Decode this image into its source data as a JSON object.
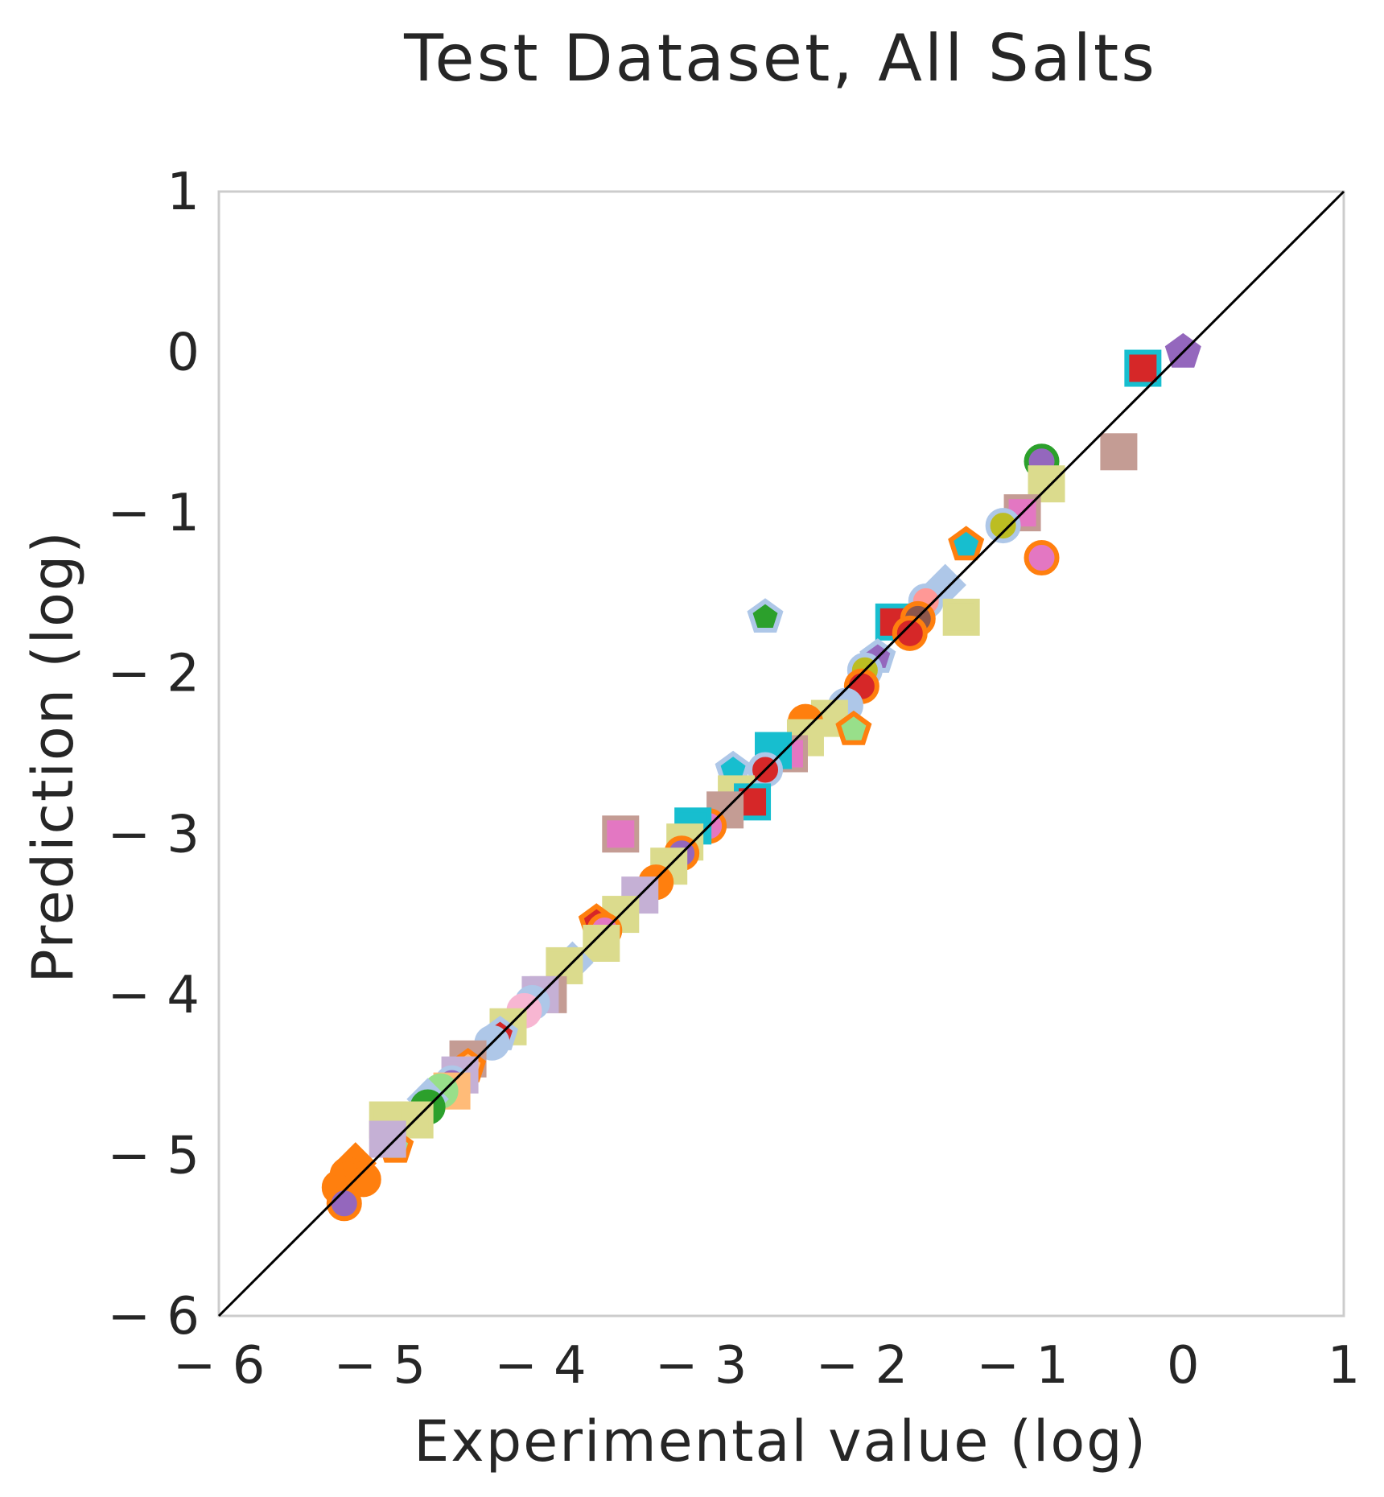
{
  "chart_data": {
    "type": "scatter",
    "title": "Test Dataset, All Salts",
    "xlabel": "Experimental value (log)",
    "ylabel": "Prediction (log)",
    "xlim": [
      -6,
      1
    ],
    "ylim": [
      -6,
      1
    ],
    "xticks": [
      "− 6",
      "− 5",
      "− 4",
      "− 3",
      "− 2",
      "− 1",
      "0",
      "1"
    ],
    "yticks": [
      "− 6",
      "− 5",
      "− 4",
      "− 3",
      "− 2",
      "− 1",
      "0",
      "1"
    ],
    "xtick_values": [
      -6,
      -5,
      -4,
      -3,
      -2,
      -1,
      0,
      1
    ],
    "ytick_values": [
      -6,
      -5,
      -4,
      -3,
      -2,
      -1,
      0,
      1
    ],
    "grid": false,
    "reference_line": {
      "from": [
        -6,
        -6
      ],
      "to": [
        1,
        1
      ],
      "color": "#000000"
    },
    "points": [
      {
        "x": 0.0,
        "y": 0.0,
        "marker": "pentagon",
        "fill": "#9467bd",
        "edge": "#9467bd"
      },
      {
        "x": -0.25,
        "y": -0.1,
        "marker": "square",
        "fill": "#d62728",
        "edge": "#17becf"
      },
      {
        "x": -0.4,
        "y": -0.62,
        "marker": "square",
        "fill": "#c49c94",
        "edge": "#c49c94"
      },
      {
        "x": -0.88,
        "y": -0.68,
        "marker": "circle",
        "fill": "#9467bd",
        "edge": "#2ca02c"
      },
      {
        "x": -0.85,
        "y": -0.82,
        "marker": "square",
        "fill": "#dbdb8d",
        "edge": "#dbdb8d"
      },
      {
        "x": -1.0,
        "y": -1.0,
        "marker": "square",
        "fill": "#e377c2",
        "edge": "#c49c94"
      },
      {
        "x": -1.12,
        "y": -1.08,
        "marker": "circle",
        "fill": "#bcbd22",
        "edge": "#aec7e8"
      },
      {
        "x": -1.35,
        "y": -1.2,
        "marker": "pentagon",
        "fill": "#17becf",
        "edge": "#ff7f0e"
      },
      {
        "x": -0.88,
        "y": -1.28,
        "marker": "circle",
        "fill": "#e377c2",
        "edge": "#ff7f0e"
      },
      {
        "x": -1.48,
        "y": -1.45,
        "marker": "diamond",
        "fill": "#aec7e8",
        "edge": "#aec7e8"
      },
      {
        "x": -1.6,
        "y": -1.55,
        "marker": "circle",
        "fill": "#ff9896",
        "edge": "#aec7e8"
      },
      {
        "x": -1.38,
        "y": -1.65,
        "marker": "square",
        "fill": "#dbdb8d",
        "edge": "#dbdb8d"
      },
      {
        "x": -1.8,
        "y": -1.68,
        "marker": "square",
        "fill": "#d62728",
        "edge": "#17becf"
      },
      {
        "x": -1.65,
        "y": -1.66,
        "marker": "circle",
        "fill": "#8c564b",
        "edge": "#ff7f0e"
      },
      {
        "x": -1.7,
        "y": -1.75,
        "marker": "circle",
        "fill": "#d62728",
        "edge": "#ff7f0e"
      },
      {
        "x": -2.6,
        "y": -1.65,
        "marker": "pentagon",
        "fill": "#2ca02c",
        "edge": "#aec7e8"
      },
      {
        "x": -1.9,
        "y": -1.9,
        "marker": "pentagon",
        "fill": "#9467bd",
        "edge": "#aec7e8"
      },
      {
        "x": -1.98,
        "y": -1.98,
        "marker": "circle",
        "fill": "#bcbd22",
        "edge": "#aec7e8"
      },
      {
        "x": -2.0,
        "y": -2.08,
        "marker": "circle",
        "fill": "#d62728",
        "edge": "#ff7f0e"
      },
      {
        "x": -2.1,
        "y": -2.2,
        "marker": "circle",
        "fill": "#aec7e8",
        "edge": "#aec7e8"
      },
      {
        "x": -2.2,
        "y": -2.28,
        "marker": "square",
        "fill": "#dbdb8d",
        "edge": "#dbdb8d"
      },
      {
        "x": -2.05,
        "y": -2.35,
        "marker": "pentagon",
        "fill": "#98df8a",
        "edge": "#ff7f0e"
      },
      {
        "x": -2.35,
        "y": -2.3,
        "marker": "circle",
        "fill": "#ff7f0e",
        "edge": "#ff7f0e"
      },
      {
        "x": -2.35,
        "y": -2.4,
        "marker": "square",
        "fill": "#dbdb8d",
        "edge": "#dbdb8d"
      },
      {
        "x": -2.45,
        "y": -2.5,
        "marker": "square",
        "fill": "#e377c2",
        "edge": "#c49c94"
      },
      {
        "x": -2.55,
        "y": -2.48,
        "marker": "square",
        "fill": "#17becf",
        "edge": "#17becf"
      },
      {
        "x": -2.6,
        "y": -2.6,
        "marker": "circle",
        "fill": "#d62728",
        "edge": "#aec7e8"
      },
      {
        "x": -2.8,
        "y": -2.6,
        "marker": "pentagon",
        "fill": "#17becf",
        "edge": "#aec7e8"
      },
      {
        "x": -2.78,
        "y": -2.75,
        "marker": "square",
        "fill": "#dbdb8d",
        "edge": "#dbdb8d"
      },
      {
        "x": -2.68,
        "y": -2.8,
        "marker": "square",
        "fill": "#d62728",
        "edge": "#17becf"
      },
      {
        "x": -2.85,
        "y": -2.85,
        "marker": "square",
        "fill": "#c49c94",
        "edge": "#c49c94"
      },
      {
        "x": -2.95,
        "y": -2.95,
        "marker": "circle",
        "fill": "#e377c2",
        "edge": "#ff7f0e"
      },
      {
        "x": -3.05,
        "y": -2.95,
        "marker": "square",
        "fill": "#17becf",
        "edge": "#17becf"
      },
      {
        "x": -3.1,
        "y": -3.05,
        "marker": "square",
        "fill": "#dbdb8d",
        "edge": "#dbdb8d"
      },
      {
        "x": -3.5,
        "y": -3.0,
        "marker": "square",
        "fill": "#e377c2",
        "edge": "#c49c94"
      },
      {
        "x": -3.12,
        "y": -3.12,
        "marker": "circle",
        "fill": "#9467bd",
        "edge": "#ff7f0e"
      },
      {
        "x": -3.2,
        "y": -3.2,
        "marker": "square",
        "fill": "#dbdb8d",
        "edge": "#dbdb8d"
      },
      {
        "x": -3.28,
        "y": -3.3,
        "marker": "circle",
        "fill": "#ff7f0e",
        "edge": "#ff7f0e"
      },
      {
        "x": -3.38,
        "y": -3.38,
        "marker": "square",
        "fill": "#c5b0d5",
        "edge": "#c5b0d5"
      },
      {
        "x": -3.5,
        "y": -3.5,
        "marker": "square",
        "fill": "#dbdb8d",
        "edge": "#dbdb8d"
      },
      {
        "x": -3.65,
        "y": -3.55,
        "marker": "pentagon",
        "fill": "#d62728",
        "edge": "#ff7f0e"
      },
      {
        "x": -3.6,
        "y": -3.6,
        "marker": "circle",
        "fill": "#e377c2",
        "edge": "#ff7f0e"
      },
      {
        "x": -3.62,
        "y": -3.68,
        "marker": "square",
        "fill": "#dbdb8d",
        "edge": "#dbdb8d"
      },
      {
        "x": -3.8,
        "y": -3.8,
        "marker": "diamond",
        "fill": "#aec7e8",
        "edge": "#aec7e8"
      },
      {
        "x": -3.85,
        "y": -3.82,
        "marker": "square",
        "fill": "#dbdb8d",
        "edge": "#dbdb8d"
      },
      {
        "x": -3.95,
        "y": -4.0,
        "marker": "square",
        "fill": "#c49c94",
        "edge": "#c49c94"
      },
      {
        "x": -4.0,
        "y": -4.0,
        "marker": "square",
        "fill": "#c5b0d5",
        "edge": "#c5b0d5"
      },
      {
        "x": -4.05,
        "y": -4.05,
        "marker": "circle",
        "fill": "#aec7e8",
        "edge": "#aec7e8"
      },
      {
        "x": -4.1,
        "y": -4.1,
        "marker": "circle",
        "fill": "#f7b6d2",
        "edge": "#f7b6d2"
      },
      {
        "x": -4.2,
        "y": -4.2,
        "marker": "square",
        "fill": "#dbdb8d",
        "edge": "#dbdb8d"
      },
      {
        "x": -4.25,
        "y": -4.25,
        "marker": "pentagon",
        "fill": "#d62728",
        "edge": "#aec7e8"
      },
      {
        "x": -4.3,
        "y": -4.3,
        "marker": "circle",
        "fill": "#aec7e8",
        "edge": "#aec7e8"
      },
      {
        "x": -4.45,
        "y": -4.4,
        "marker": "square",
        "fill": "#c49c94",
        "edge": "#c49c94"
      },
      {
        "x": -4.45,
        "y": -4.45,
        "marker": "pentagon",
        "fill": "#ffbb78",
        "edge": "#ff7f0e"
      },
      {
        "x": -4.5,
        "y": -4.5,
        "marker": "square",
        "fill": "#c5b0d5",
        "edge": "#c5b0d5"
      },
      {
        "x": -4.55,
        "y": -4.55,
        "marker": "circle",
        "fill": "#9467bd",
        "edge": "#aec7e8"
      },
      {
        "x": -4.55,
        "y": -4.6,
        "marker": "square",
        "fill": "#ffbb78",
        "edge": "#ffbb78"
      },
      {
        "x": -4.62,
        "y": -4.6,
        "marker": "circle",
        "fill": "#98df8a",
        "edge": "#98df8a"
      },
      {
        "x": -4.7,
        "y": -4.65,
        "marker": "diamond",
        "fill": "#aec7e8",
        "edge": "#aec7e8"
      },
      {
        "x": -4.7,
        "y": -4.7,
        "marker": "circle",
        "fill": "#2ca02c",
        "edge": "#2ca02c"
      },
      {
        "x": -4.78,
        "y": -4.78,
        "marker": "square",
        "fill": "#dbdb8d",
        "edge": "#dbdb8d"
      },
      {
        "x": -4.95,
        "y": -4.78,
        "marker": "square",
        "fill": "#dbdb8d",
        "edge": "#dbdb8d"
      },
      {
        "x": -4.9,
        "y": -4.95,
        "marker": "pentagon",
        "fill": "#98df8a",
        "edge": "#ff7f0e"
      },
      {
        "x": -4.95,
        "y": -4.9,
        "marker": "square",
        "fill": "#c5b0d5",
        "edge": "#c5b0d5"
      },
      {
        "x": -5.15,
        "y": -5.05,
        "marker": "diamond",
        "fill": "#ff7f0e",
        "edge": "#ff7f0e"
      },
      {
        "x": -5.2,
        "y": -5.12,
        "marker": "circle",
        "fill": "#ff7f0e",
        "edge": "#ff7f0e"
      },
      {
        "x": -5.1,
        "y": -5.15,
        "marker": "circle",
        "fill": "#ff7f0e",
        "edge": "#ff7f0e"
      },
      {
        "x": -5.25,
        "y": -5.2,
        "marker": "circle",
        "fill": "#ff7f0e",
        "edge": "#ff7f0e"
      },
      {
        "x": -5.22,
        "y": -5.3,
        "marker": "circle",
        "fill": "#9467bd",
        "edge": "#ff7f0e"
      }
    ]
  }
}
